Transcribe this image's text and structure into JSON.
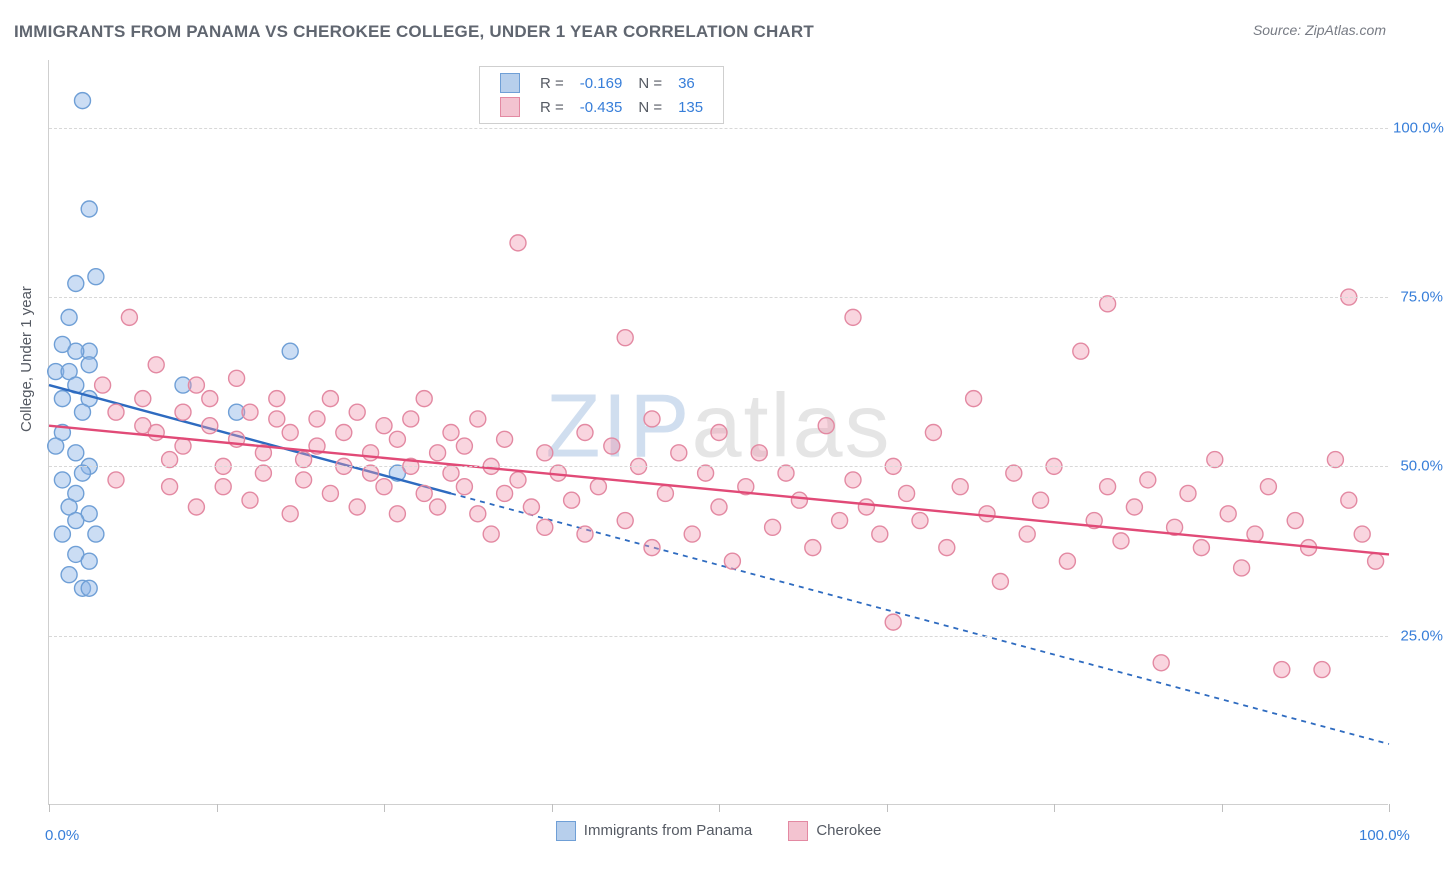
{
  "title": "IMMIGRANTS FROM PANAMA VS CHEROKEE COLLEGE, UNDER 1 YEAR CORRELATION CHART",
  "source_prefix": "Source: ",
  "source_name": "ZipAtlas.com",
  "y_axis_label": "College, Under 1 year",
  "watermark_a": "ZIP",
  "watermark_b": "atlas",
  "chart": {
    "type": "scatter",
    "xlim": [
      0,
      100
    ],
    "ylim": [
      0,
      110
    ],
    "x_ticks_major": [
      0,
      12.5,
      25,
      37.5,
      50,
      62.5,
      75,
      87.5,
      100
    ],
    "x_tick_labels": {
      "0": "0.0%",
      "100": "100.0%"
    },
    "y_gridlines": [
      25,
      50,
      75,
      100
    ],
    "y_tick_labels": {
      "25": "25.0%",
      "50": "50.0%",
      "75": "75.0%",
      "100": "100.0%"
    },
    "background_color": "#ffffff",
    "grid_color": "#d8d8d8",
    "axis_color": "#cfcfcf",
    "marker_radius": 8,
    "marker_stroke_width": 1.4,
    "series": [
      {
        "key": "panama",
        "label": "Immigrants from Panama",
        "fill": "rgba(140,180,230,0.45)",
        "stroke": "#6f9fd6",
        "swatch_fill": "#b7cfec",
        "swatch_border": "#6f9fd6",
        "R": "-0.169",
        "N": "36",
        "regression": {
          "x1": 0,
          "y1": 62,
          "x2": 30,
          "y2": 46,
          "extend_x2": 100,
          "extend_y2": 9,
          "color": "#2e6bc0",
          "width": 2.4,
          "dash": "5,5"
        },
        "points": [
          [
            2.5,
            104
          ],
          [
            3,
            88
          ],
          [
            2,
            77
          ],
          [
            3.5,
            78
          ],
          [
            1.5,
            72
          ],
          [
            1,
            68
          ],
          [
            3,
            67
          ],
          [
            2,
            67
          ],
          [
            3,
            65
          ],
          [
            0.5,
            64
          ],
          [
            1.5,
            64
          ],
          [
            2,
            62
          ],
          [
            1,
            60
          ],
          [
            3,
            60
          ],
          [
            2.5,
            58
          ],
          [
            1,
            55
          ],
          [
            0.5,
            53
          ],
          [
            2,
            52
          ],
          [
            3,
            50
          ],
          [
            2.5,
            49
          ],
          [
            1,
            48
          ],
          [
            2,
            46
          ],
          [
            1.5,
            44
          ],
          [
            3,
            43
          ],
          [
            2,
            42
          ],
          [
            1,
            40
          ],
          [
            3.5,
            40
          ],
          [
            2,
            37
          ],
          [
            3,
            36
          ],
          [
            1.5,
            34
          ],
          [
            2.5,
            32
          ],
          [
            3,
            32
          ],
          [
            10,
            62
          ],
          [
            14,
            58
          ],
          [
            18,
            67
          ],
          [
            26,
            49
          ]
        ]
      },
      {
        "key": "cherokee",
        "label": "Cherokee",
        "fill": "rgba(240,150,175,0.40)",
        "stroke": "#e389a2",
        "swatch_fill": "#f3c3d0",
        "swatch_border": "#e389a2",
        "R": "-0.435",
        "N": "135",
        "regression": {
          "x1": 0,
          "y1": 56,
          "x2": 100,
          "y2": 37,
          "color": "#e14a77",
          "width": 2.4,
          "dash": ""
        },
        "points": [
          [
            4,
            62
          ],
          [
            5,
            58
          ],
          [
            6,
            72
          ],
          [
            5,
            48
          ],
          [
            7,
            56
          ],
          [
            7,
            60
          ],
          [
            8,
            65
          ],
          [
            8,
            55
          ],
          [
            9,
            51
          ],
          [
            9,
            47
          ],
          [
            10,
            58
          ],
          [
            10,
            53
          ],
          [
            11,
            62
          ],
          [
            11,
            44
          ],
          [
            12,
            56
          ],
          [
            12,
            60
          ],
          [
            13,
            50
          ],
          [
            13,
            47
          ],
          [
            14,
            63
          ],
          [
            14,
            54
          ],
          [
            15,
            58
          ],
          [
            15,
            45
          ],
          [
            16,
            52
          ],
          [
            16,
            49
          ],
          [
            17,
            57
          ],
          [
            17,
            60
          ],
          [
            18,
            55
          ],
          [
            18,
            43
          ],
          [
            19,
            51
          ],
          [
            19,
            48
          ],
          [
            20,
            57
          ],
          [
            20,
            53
          ],
          [
            21,
            46
          ],
          [
            21,
            60
          ],
          [
            22,
            55
          ],
          [
            22,
            50
          ],
          [
            23,
            58
          ],
          [
            23,
            44
          ],
          [
            24,
            52
          ],
          [
            24,
            49
          ],
          [
            25,
            56
          ],
          [
            25,
            47
          ],
          [
            26,
            54
          ],
          [
            26,
            43
          ],
          [
            27,
            50
          ],
          [
            27,
            57
          ],
          [
            28,
            46
          ],
          [
            28,
            60
          ],
          [
            29,
            52
          ],
          [
            29,
            44
          ],
          [
            30,
            55
          ],
          [
            30,
            49
          ],
          [
            31,
            47
          ],
          [
            31,
            53
          ],
          [
            32,
            43
          ],
          [
            32,
            57
          ],
          [
            33,
            50
          ],
          [
            33,
            40
          ],
          [
            34,
            46
          ],
          [
            34,
            54
          ],
          [
            35,
            83
          ],
          [
            35,
            48
          ],
          [
            36,
            44
          ],
          [
            37,
            52
          ],
          [
            37,
            41
          ],
          [
            38,
            49
          ],
          [
            39,
            45
          ],
          [
            40,
            55
          ],
          [
            40,
            40
          ],
          [
            41,
            47
          ],
          [
            42,
            53
          ],
          [
            43,
            69
          ],
          [
            43,
            42
          ],
          [
            44,
            50
          ],
          [
            45,
            57
          ],
          [
            45,
            38
          ],
          [
            46,
            46
          ],
          [
            47,
            52
          ],
          [
            48,
            40
          ],
          [
            49,
            49
          ],
          [
            50,
            44
          ],
          [
            50,
            55
          ],
          [
            51,
            36
          ],
          [
            52,
            47
          ],
          [
            53,
            52
          ],
          [
            54,
            41
          ],
          [
            55,
            49
          ],
          [
            56,
            45
          ],
          [
            57,
            38
          ],
          [
            58,
            56
          ],
          [
            59,
            42
          ],
          [
            60,
            48
          ],
          [
            60,
            72
          ],
          [
            61,
            44
          ],
          [
            62,
            40
          ],
          [
            63,
            50
          ],
          [
            63,
            27
          ],
          [
            64,
            46
          ],
          [
            65,
            42
          ],
          [
            66,
            55
          ],
          [
            67,
            38
          ],
          [
            68,
            47
          ],
          [
            69,
            60
          ],
          [
            70,
            43
          ],
          [
            71,
            33
          ],
          [
            72,
            49
          ],
          [
            73,
            40
          ],
          [
            74,
            45
          ],
          [
            75,
            50
          ],
          [
            76,
            36
          ],
          [
            77,
            67
          ],
          [
            78,
            42
          ],
          [
            79,
            47
          ],
          [
            79,
            74
          ],
          [
            80,
            39
          ],
          [
            81,
            44
          ],
          [
            82,
            48
          ],
          [
            83,
            21
          ],
          [
            84,
            41
          ],
          [
            85,
            46
          ],
          [
            86,
            38
          ],
          [
            87,
            51
          ],
          [
            88,
            43
          ],
          [
            89,
            35
          ],
          [
            90,
            40
          ],
          [
            91,
            47
          ],
          [
            92,
            20
          ],
          [
            93,
            42
          ],
          [
            94,
            38
          ],
          [
            95,
            20
          ],
          [
            96,
            51
          ],
          [
            97,
            45
          ],
          [
            97,
            75
          ],
          [
            98,
            40
          ],
          [
            99,
            36
          ]
        ]
      }
    ]
  },
  "legend_top": {
    "r_label": "R =",
    "n_label": "N =",
    "stat_label_color": "#555a63",
    "stat_value_color": "#377ed9"
  }
}
